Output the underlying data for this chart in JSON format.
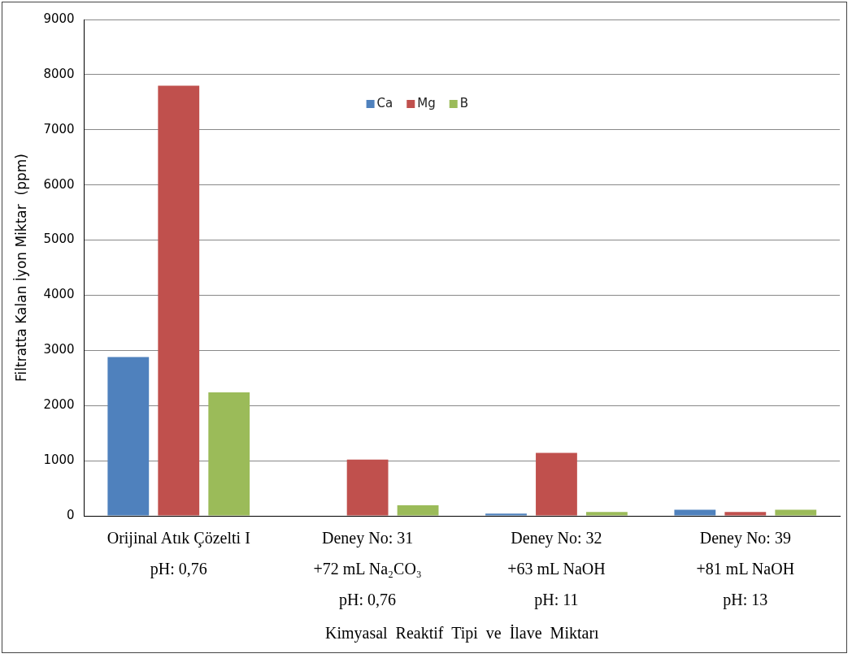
{
  "chart_data": {
    "type": "bar",
    "xlabel": "Kimyasal  Reaktif  Tipi  ve  İlave  Miktarı",
    "ylabel": "Filtratta Kalan İyon Miktar  (ppm)",
    "categories": [
      "Orijinal Atık Çözelti I\npH: 0,76",
      "Deney No: 31\n+72 mL Na₂CO₃\npH: 0,76",
      "Deney No: 32\n+63 mL NaOH\npH: 11",
      "Deney No: 39\n+81 mL NaOH\npH: 13"
    ],
    "series": [
      {
        "name": "Ca",
        "color": "#4f81bd",
        "values": [
          2880,
          0,
          40,
          110
        ]
      },
      {
        "name": "Mg",
        "color": "#c0504d",
        "values": [
          7800,
          1020,
          1140,
          70
        ]
      },
      {
        "name": "B",
        "color": "#9bbb59",
        "values": [
          2240,
          190,
          70,
          110
        ]
      }
    ],
    "ylim": [
      0,
      9000
    ],
    "yticks": [
      0,
      1000,
      2000,
      3000,
      4000,
      5000,
      6000,
      7000,
      8000,
      9000
    ],
    "grid": "y",
    "legend": "top"
  }
}
